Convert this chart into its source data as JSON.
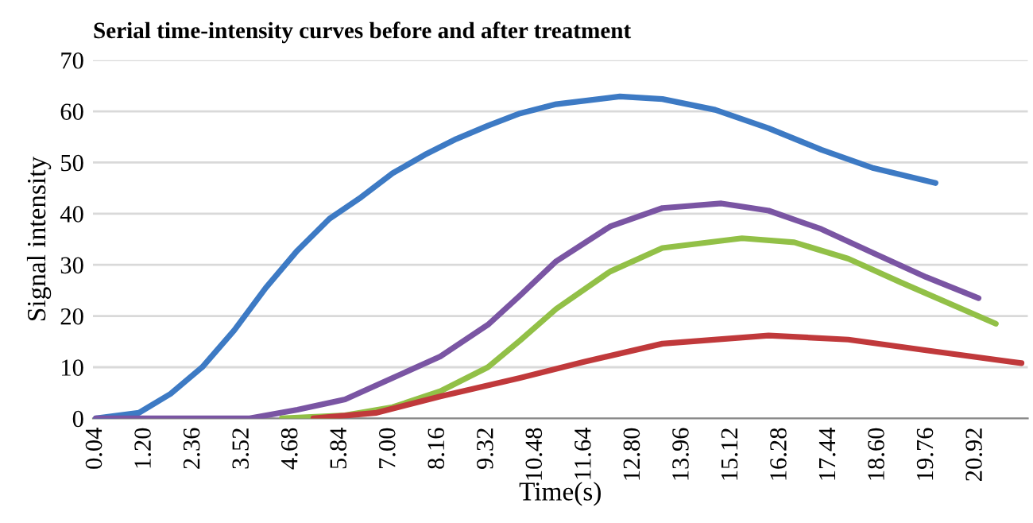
{
  "chart_data": {
    "type": "line",
    "title": "Serial time-intensity curves before and after treatment",
    "xlabel": "Time(s)",
    "ylabel": "Signal intensity",
    "xlim": [
      -0.03,
      22.15
    ],
    "ylim": [
      0,
      70
    ],
    "yticks": [
      0,
      10,
      20,
      30,
      40,
      50,
      60,
      70
    ],
    "xticks": [
      0.04,
      {
        "value": 1.2,
        "label": "1.20"
      },
      2.36,
      3.52,
      4.68,
      5.84,
      {
        "value": 7.0,
        "label": "7.00"
      },
      8.16,
      9.32,
      10.48,
      11.64,
      {
        "value": 12.8,
        "label": "12.80"
      },
      13.96,
      15.12,
      16.28,
      17.44,
      {
        "value": 18.6,
        "label": "18.60"
      },
      19.76,
      20.92
    ],
    "grid": "y",
    "marker": "none",
    "line_style": "solid",
    "series": [
      {
        "color": "#3d7ac4",
        "x": [
          0.04,
          1.06,
          1.81,
          2.56,
          3.32,
          4.07,
          4.82,
          5.58,
          6.33,
          7.08,
          7.84,
          8.59,
          9.34,
          10.1,
          10.96,
          12.47,
          13.48,
          14.73,
          16.0,
          17.25,
          18.49,
          19.96
        ],
        "values": [
          0,
          1.1,
          4.8,
          10.0,
          17.2,
          25.5,
          32.8,
          39.0,
          43.2,
          47.9,
          51.5,
          54.6,
          57.2,
          59.6,
          61.4,
          62.9,
          62.4,
          60.3,
          56.7,
          52.5,
          48.9,
          46.0
        ]
      },
      {
        "color": "#7a55a3",
        "x": [
          0.04,
          3.69,
          4.82,
          5.95,
          7.08,
          8.21,
          9.34,
          10.1,
          10.96,
          12.24,
          13.48,
          14.88,
          16.0,
          17.25,
          18.49,
          19.74,
          20.98
        ],
        "values": [
          0,
          0,
          1.7,
          3.7,
          7.9,
          12.1,
          18.3,
          24.0,
          30.7,
          37.5,
          41.1,
          42.0,
          40.6,
          37.0,
          32.3,
          27.6,
          23.5
        ]
      },
      {
        "color": "#92c047",
        "x": [
          4.45,
          5.95,
          7.08,
          8.21,
          9.34,
          10.1,
          10.96,
          12.24,
          13.48,
          15.37,
          16.61,
          17.89,
          19.13,
          21.39
        ],
        "values": [
          0,
          0.6,
          2.2,
          5.3,
          10.0,
          15.2,
          21.4,
          28.7,
          33.3,
          35.2,
          34.4,
          31.2,
          26.6,
          18.5
        ]
      },
      {
        "color": "#c0393b",
        "x": [
          5.2,
          6.7,
          8.21,
          10.1,
          11.6,
          13.48,
          16.0,
          17.89,
          19.74,
          22.0
        ],
        "values": [
          0,
          1.1,
          4.3,
          7.9,
          11.0,
          14.6,
          16.2,
          15.4,
          13.3,
          10.8
        ]
      }
    ]
  }
}
